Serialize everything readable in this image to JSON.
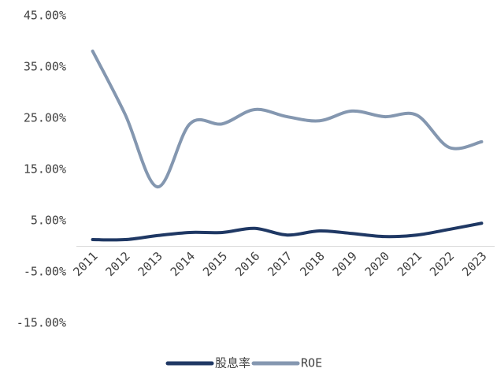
{
  "chart_data": {
    "type": "line",
    "categories": [
      "2011",
      "2012",
      "2013",
      "2014",
      "2015",
      "2016",
      "2017",
      "2018",
      "2019",
      "2020",
      "2021",
      "2022",
      "2023"
    ],
    "series": [
      {
        "name": "股息率",
        "color": "#1f3864",
        "values": [
          1.3,
          1.3,
          2.1,
          2.7,
          2.7,
          3.5,
          2.2,
          3.0,
          2.5,
          1.9,
          2.2,
          3.3,
          4.5
        ]
      },
      {
        "name": "ROE",
        "color": "#8497b0",
        "values": [
          38.1,
          25.8,
          11.6,
          23.9,
          23.9,
          26.7,
          25.3,
          24.5,
          26.4,
          25.3,
          25.6,
          19.3,
          20.4
        ]
      }
    ],
    "ylim": [
      -15,
      45
    ],
    "yticks": [
      {
        "value": -15,
        "label": "-15.00%"
      },
      {
        "value": -5,
        "label": "-5.00%"
      },
      {
        "value": 5,
        "label": "5.00%"
      },
      {
        "value": 15,
        "label": "15.00%"
      },
      {
        "value": 25,
        "label": "25.00%"
      },
      {
        "value": 35,
        "label": "35.00%"
      },
      {
        "value": 45,
        "label": "45.00%"
      }
    ],
    "legend": "bottom",
    "smooth": true
  }
}
